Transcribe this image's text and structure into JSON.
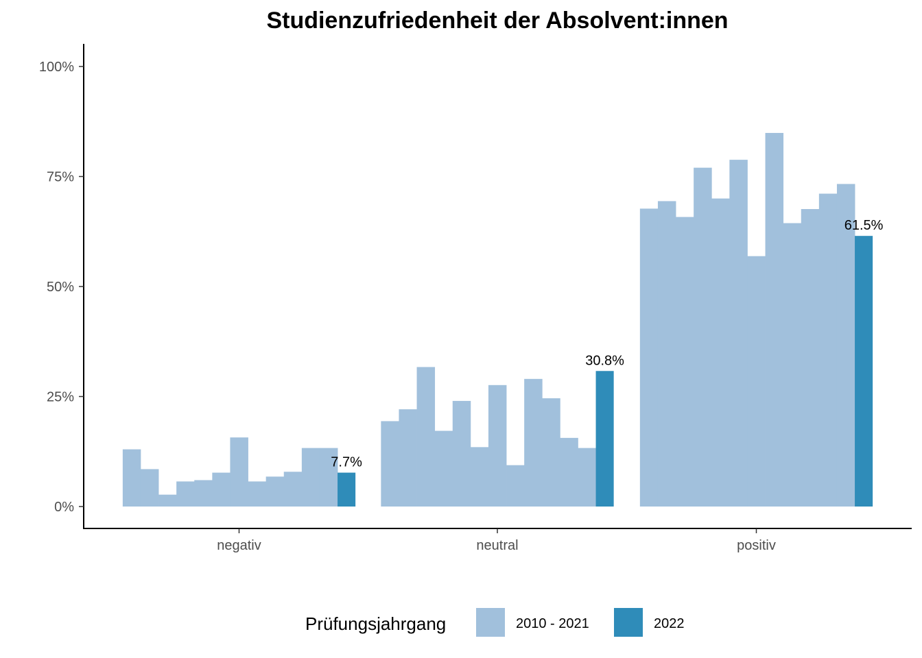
{
  "chart_data": {
    "type": "bar",
    "title": "Studienzufriedenheit der Absolvent:innen",
    "xlabel": "",
    "ylabel": "",
    "categories": [
      "negativ",
      "neutral",
      "positiv"
    ],
    "yticks": [
      "0%",
      "25%",
      "50%",
      "75%",
      "100%"
    ],
    "ylim": [
      0,
      100
    ],
    "grid": false,
    "legend": {
      "title": "Prüfungsjahrgang",
      "position": "bottom",
      "entries": [
        {
          "label": "2010 - 2021",
          "color": "#a1c0dc"
        },
        {
          "label": "2022",
          "color": "#2f8cb9"
        }
      ]
    },
    "series": [
      {
        "name": "2010 - 2021",
        "color": "#a1c0dc",
        "values": [
          [
            13.0,
            8.5,
            2.7,
            5.7,
            6.0,
            7.7,
            15.7,
            5.7,
            6.8,
            7.9,
            13.3,
            13.3
          ],
          [
            19.4,
            22.1,
            31.7,
            17.2,
            24.0,
            13.5,
            27.6,
            9.4,
            29.0,
            24.6,
            15.6,
            13.3
          ],
          [
            67.7,
            69.4,
            65.8,
            77.0,
            70.0,
            78.8,
            56.9,
            84.9,
            64.4,
            67.6,
            71.1,
            73.3
          ]
        ]
      },
      {
        "name": "2022",
        "color": "#2f8cb9",
        "values": [
          7.7,
          30.8,
          61.5
        ],
        "labels": [
          "7.7%",
          "30.8%",
          "61.5%"
        ]
      }
    ]
  }
}
